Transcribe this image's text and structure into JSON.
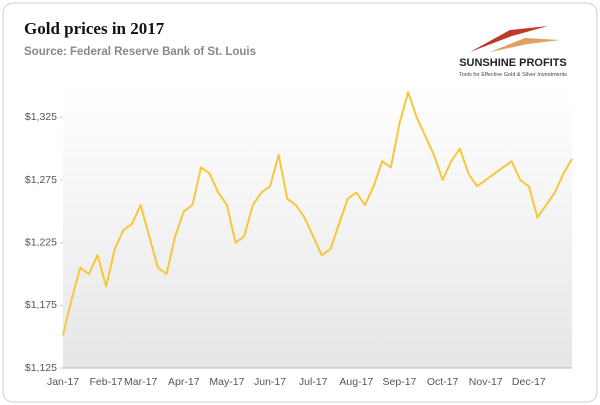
{
  "chart_data": {
    "type": "line",
    "title": "Gold prices in 2017",
    "subtitle": "Source: Federal Reserve Bank of St. Louis",
    "logo": {
      "name": "SUNSHINE PROFITS",
      "tagline": "Tools for Effective Gold & Silver Investments"
    },
    "categories": [
      "Jan-17",
      null,
      null,
      null,
      null,
      "Feb-17",
      null,
      null,
      null,
      "Mar-17",
      null,
      null,
      null,
      null,
      "Apr-17",
      null,
      null,
      null,
      null,
      "May-17",
      null,
      null,
      null,
      null,
      "Jun-17",
      null,
      null,
      null,
      null,
      "Jul-17",
      null,
      null,
      null,
      null,
      "Aug-17",
      null,
      null,
      null,
      null,
      "Sep-17",
      null,
      null,
      null,
      null,
      "Oct-17",
      null,
      null,
      null,
      null,
      "Nov-17",
      null,
      null,
      null,
      null,
      "Dec-17",
      null,
      null,
      null,
      null,
      null
    ],
    "series": [
      {
        "name": "Gold price",
        "color": "#f5c83c",
        "values": [
          1151,
          1180,
          1205,
          1200,
          1215,
          1190,
          1220,
          1235,
          1240,
          1255,
          1230,
          1205,
          1200,
          1230,
          1250,
          1255,
          1285,
          1280,
          1265,
          1255,
          1225,
          1230,
          1255,
          1265,
          1270,
          1295,
          1260,
          1255,
          1245,
          1230,
          1215,
          1220,
          1240,
          1260,
          1265,
          1255,
          1270,
          1290,
          1285,
          1320,
          1345,
          1325,
          1310,
          1295,
          1275,
          1290,
          1300,
          1280,
          1270,
          1275,
          1280,
          1285,
          1290,
          1275,
          1270,
          1245,
          1255,
          1265,
          1280,
          1292
        ]
      }
    ],
    "ylim": [
      1125,
      1350
    ],
    "yticks": [
      {
        "value": 1125,
        "label": "$1,125"
      },
      {
        "value": 1175,
        "label": "$1,175"
      },
      {
        "value": 1225,
        "label": "$1,225"
      },
      {
        "value": 1275,
        "label": "$1,275"
      },
      {
        "value": 1325,
        "label": "$1,325"
      }
    ],
    "grid": false
  }
}
